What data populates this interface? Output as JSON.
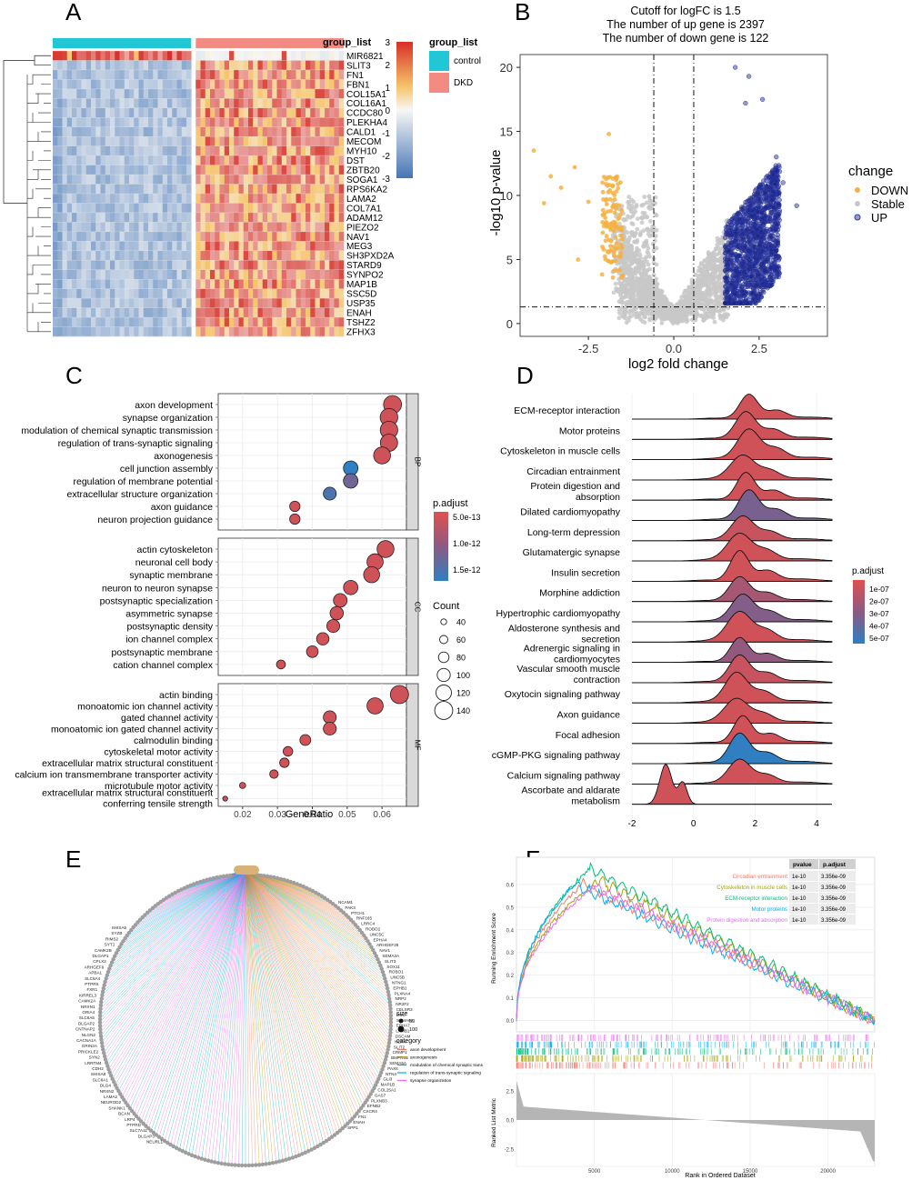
{
  "panel_letters": [
    "A",
    "B",
    "C",
    "D",
    "E",
    "F"
  ],
  "colors": {
    "heat_low": "#4575b4",
    "heat_mid": "#f7f7f7",
    "heat_high": "#d73027",
    "control": "#22c7d6",
    "dkd": "#f28b82",
    "down": "#f5b041",
    "stable": "#c8c8c8",
    "up": "#1a237e",
    "padj_high": "#e0504f",
    "padj_low": "#2f7fc1",
    "facet_strip": "#d9d9d9",
    "panel_bg": "#ffffff",
    "grid": "#ebebeb"
  },
  "chart_data": [
    {
      "panel": "A",
      "type": "heatmap",
      "genes": [
        "MIR6821",
        "SLIT3",
        "FN1",
        "FBN1",
        "COL15A1",
        "COL16A1",
        "CCDC80",
        "PLEKHA4",
        "CALD1",
        "MECOM",
        "MYH10",
        "DST",
        "ZBTB20",
        "SOGA1",
        "RPS6KA2",
        "LAMA2",
        "COL7A1",
        "ADAM12",
        "PIEZO2",
        "NAV1",
        "MEG3",
        "SH3PXD2A",
        "STARD9",
        "SYNPO2",
        "MAP1B",
        "SSC5D",
        "USP35",
        "ENAH",
        "TSHZ2",
        "ZFHX3"
      ],
      "n_control": 28,
      "n_dkd": 31,
      "annotation_title": "group_list",
      "legend_title": "group_list",
      "groups": [
        "control",
        "DKD"
      ],
      "scale_ticks": [
        3,
        2,
        1,
        0,
        -1,
        -2,
        -3
      ]
    },
    {
      "panel": "B",
      "type": "scatter",
      "title_lines": [
        "Cutoff for logFC is 1.5",
        "The number of up gene is 2397",
        "The number of down gene is 122"
      ],
      "xlabel": "log2 fold change",
      "ylabel": "-log10 p-value",
      "xlim": [
        -4.5,
        4.5
      ],
      "ylim": [
        -1,
        21
      ],
      "x_ticks": [
        -2.5,
        0.0,
        2.5
      ],
      "x_tick_labels": [
        "-2.5",
        "0.0",
        "2.5"
      ],
      "y_ticks": [
        0,
        5,
        10,
        15,
        20
      ],
      "vlines": [
        -0.585,
        0.585
      ],
      "hline": 1.3,
      "legend_title": "change",
      "legend": [
        "DOWN",
        "Stable",
        "UP"
      ],
      "n_up": 2397,
      "n_down": 122
    },
    {
      "panel": "C",
      "type": "scatter",
      "xlabel": "GeneRatio",
      "x_ticks": [
        0.02,
        0.03,
        0.04,
        0.05,
        0.06
      ],
      "xlim": [
        0.013,
        0.067
      ],
      "padj_legend_title": "p.adjust",
      "padj_ticks": [
        "5.0e-13",
        "1.0e-12",
        "1.5e-12"
      ],
      "count_legend_title": "Count",
      "count_ticks": [
        40,
        60,
        80,
        100,
        120,
        140
      ],
      "facets": [
        {
          "name": "BP",
          "terms": [
            {
              "term": "axon development",
              "ratio": 0.063,
              "count": 140,
              "padj": 0.1
            },
            {
              "term": "synapse organization",
              "ratio": 0.062,
              "count": 138,
              "padj": 0.1
            },
            {
              "term": "modulation of chemical synaptic transmission",
              "ratio": 0.062,
              "count": 136,
              "padj": 0.1
            },
            {
              "term": "regulation of trans-synaptic signaling",
              "ratio": 0.062,
              "count": 135,
              "padj": 0.1
            },
            {
              "term": "axonogenesis",
              "ratio": 0.06,
              "count": 131,
              "padj": 0.1
            },
            {
              "term": "cell junction assembly",
              "ratio": 0.051,
              "count": 112,
              "padj": 1.0
            },
            {
              "term": "regulation of membrane potential",
              "ratio": 0.051,
              "count": 112,
              "padj": 0.65
            },
            {
              "term": "extracellular structure organization",
              "ratio": 0.045,
              "count": 98,
              "padj": 0.85
            },
            {
              "term": "axon guidance",
              "ratio": 0.035,
              "count": 78,
              "padj": 0.1
            },
            {
              "term": "neuron projection guidance",
              "ratio": 0.035,
              "count": 78,
              "padj": 0.1
            }
          ]
        },
        {
          "name": "CC",
          "terms": [
            {
              "term": "actin cytoskeleton",
              "ratio": 0.061,
              "count": 132,
              "padj": 0.1
            },
            {
              "term": "neuronal cell body",
              "ratio": 0.058,
              "count": 126,
              "padj": 0.1
            },
            {
              "term": "synaptic membrane",
              "ratio": 0.057,
              "count": 124,
              "padj": 0.1
            },
            {
              "term": "neuron to neuron synapse",
              "ratio": 0.051,
              "count": 110,
              "padj": 0.1
            },
            {
              "term": "postsynaptic specialization",
              "ratio": 0.048,
              "count": 104,
              "padj": 0.1
            },
            {
              "term": "asymmetric synapse",
              "ratio": 0.047,
              "count": 101,
              "padj": 0.1
            },
            {
              "term": "postsynaptic density",
              "ratio": 0.046,
              "count": 99,
              "padj": 0.1
            },
            {
              "term": "ion channel complex",
              "ratio": 0.043,
              "count": 94,
              "padj": 0.1
            },
            {
              "term": "postsynaptic membrane",
              "ratio": 0.04,
              "count": 88,
              "padj": 0.1
            },
            {
              "term": "cation channel complex",
              "ratio": 0.031,
              "count": 66,
              "padj": 0.1
            }
          ]
        },
        {
          "name": "MF",
          "terms": [
            {
              "term": "actin binding",
              "ratio": 0.065,
              "count": 142,
              "padj": 0.1
            },
            {
              "term": "monoatomic ion channel activity",
              "ratio": 0.058,
              "count": 126,
              "padj": 0.1
            },
            {
              "term": "gated channel activity",
              "ratio": 0.045,
              "count": 99,
              "padj": 0.1
            },
            {
              "term": "monoatomic ion gated channel activity",
              "ratio": 0.045,
              "count": 98,
              "padj": 0.1
            },
            {
              "term": "calmodulin binding",
              "ratio": 0.038,
              "count": 83,
              "padj": 0.1
            },
            {
              "term": "cytoskeletal motor activity",
              "ratio": 0.033,
              "count": 72,
              "padj": 0.1
            },
            {
              "term": "extracellular matrix structural constituent",
              "ratio": 0.032,
              "count": 70,
              "padj": 0.1
            },
            {
              "term": "calcium ion transmembrane transporter activity",
              "ratio": 0.029,
              "count": 63,
              "padj": 0.1
            },
            {
              "term": "microtubule motor activity",
              "ratio": 0.02,
              "count": 44,
              "padj": 0.1
            },
            {
              "term": "extracellular matrix structural constituent conferring tensile strength",
              "ratio": 0.015,
              "count": 33,
              "padj": 0.1
            }
          ]
        }
      ]
    },
    {
      "panel": "D",
      "type": "area",
      "xlim": [
        -2,
        4.5
      ],
      "x_ticks": [
        -2,
        0,
        2,
        4
      ],
      "legend_title": "p.adjust",
      "legend_ticks": [
        "1e-07",
        "2e-07",
        "3e-07",
        "4e-07",
        "5e-07"
      ],
      "pathways": [
        {
          "name": "ECM-receptor interaction",
          "center": 1.8,
          "padj": 0.1
        },
        {
          "name": "Motor proteins",
          "center": 1.7,
          "padj": 0.1
        },
        {
          "name": "Cytoskeleton in muscle cells",
          "center": 1.8,
          "padj": 0.1
        },
        {
          "name": "Circadian entrainment",
          "center": 1.6,
          "padj": 0.1
        },
        {
          "name": "Protein digestion and absorption",
          "center": 1.7,
          "padj": 0.1
        },
        {
          "name": "Dilated cardiomyopathy",
          "center": 1.8,
          "padj": 0.6
        },
        {
          "name": "Long-term depression",
          "center": 1.6,
          "padj": 0.15
        },
        {
          "name": "Glutamatergic synapse",
          "center": 1.5,
          "padj": 0.1
        },
        {
          "name": "Insulin secretion",
          "center": 1.5,
          "padj": 0.1
        },
        {
          "name": "Morphine addiction",
          "center": 1.5,
          "padj": 0.35
        },
        {
          "name": "Hypertrophic cardiomyopathy",
          "center": 1.6,
          "padj": 0.55
        },
        {
          "name": "Aldosterone synthesis and secretion",
          "center": 1.5,
          "padj": 0.1
        },
        {
          "name": "Adrenergic signaling in cardiomyocytes",
          "center": 1.5,
          "padj": 0.45
        },
        {
          "name": "Vascular smooth muscle contraction",
          "center": 1.5,
          "padj": 0.15
        },
        {
          "name": "Oxytocin signaling pathway",
          "center": 1.4,
          "padj": 0.1
        },
        {
          "name": "Axon guidance",
          "center": 1.4,
          "padj": 0.1
        },
        {
          "name": "Focal adhesion",
          "center": 1.6,
          "padj": 0.1
        },
        {
          "name": "cGMP-PKG signaling pathway",
          "center": 1.5,
          "padj": 1.0
        },
        {
          "name": "Calcium signaling pathway",
          "center": 1.5,
          "padj": 0.1
        },
        {
          "name": "Ascorbate and aldarate metabolism",
          "center": -0.9,
          "padj": 0.1
        }
      ]
    },
    {
      "panel": "E",
      "type": "other",
      "legend_size_title": "size",
      "legend_sizes": [
        50,
        100
      ],
      "legend_category_title": "category",
      "categories": [
        "axon development",
        "axonogenesis",
        "modulation of chemical synaptic trans",
        "regulation of trans-synaptic signaling",
        "synapse organization"
      ],
      "category_colors": [
        "#f8766d",
        "#c49a00",
        "#00b8a9",
        "#00a9ff",
        "#f564e3"
      ],
      "gene_labels_left": [
        "SHISA5",
        "SYZB",
        "RIMS2",
        "SYT1",
        "CAMK2B",
        "DLGAP1",
        "CPLX2",
        "ARHGEF9",
        "APBA1",
        "SLC6A4",
        "PTPRS",
        "FXR1",
        "KIRREL3",
        "CAMK2A",
        "NRXN1",
        "GRIA4",
        "SLC6A5",
        "DLGAP2",
        "CNTNAP2",
        "NLGN2",
        "CACNA1A",
        "GRIN2A",
        "PRICKLE2",
        "SYN2",
        "LRRTM4",
        "CDH2",
        "SHISA8",
        "SLC8A1",
        "DLG4",
        "NRXN2",
        "LAMA2",
        "NEUROD2",
        "SHANK1",
        "BCAN",
        "LRP4",
        "PTPRD",
        "SLC7A11",
        "DLGAP3",
        "NEURL1"
      ],
      "gene_labels_right": [
        "NCAM1",
        "PAK3",
        "PTCH1",
        "RNF165",
        "LRRC4",
        "ROBO2",
        "UNC5C",
        "EPHA4",
        "ARHGEF28",
        "NAV1",
        "SEMA3A",
        "SLIT3",
        "SOX11",
        "ROBO1",
        "UNC5B",
        "NTNG1",
        "EPHB1",
        "PLXNA4",
        "NRP2",
        "NR2F2",
        "CELSR3",
        "DCC",
        "SEMA6A",
        "EPHA7",
        "LAMB1",
        "DSCAM",
        "NEXN",
        "SLIT2",
        "CRMP1",
        "BMPR1B",
        "SEMA5A",
        "PAX6",
        "NTN4",
        "GLI3",
        "MAP1B",
        "COL25A1",
        "GAS7",
        "PLXNB3",
        "EFNB2",
        "CXCR4",
        "FN1",
        "ENAH",
        "SPP1"
      ]
    },
    {
      "panel": "F",
      "type": "line",
      "ylabel_top": "Running Enrichment Score",
      "ylabel_bottom": "Ranked List Metric",
      "xlabel": "Rank in Ordered Dataset",
      "x_ticks": [
        5000,
        10000,
        15000,
        20000
      ],
      "es_ticks": [
        0.0,
        0.1,
        0.2,
        0.3,
        0.4,
        0.5,
        0.6
      ],
      "metric_ticks": [
        2.5,
        0.0,
        -2.5
      ],
      "n_genes": 23000,
      "table_headers": [
        "pvalue",
        "p.adjust"
      ],
      "series": [
        {
          "name": "Circadian entrainment",
          "color": "#f8766d",
          "pvalue": "1e-10",
          "padj": "3.356e-09",
          "peak": 0.6,
          "peak_at": 4200
        },
        {
          "name": "Cytoskeleton in muscle cells",
          "color": "#a3a500",
          "pvalue": "1e-10",
          "padj": "3.356e-09",
          "peak": 0.62,
          "peak_at": 5200
        },
        {
          "name": "ECM-receptor interaction",
          "color": "#00bf7d",
          "pvalue": "1e-10",
          "padj": "3.356e-09",
          "peak": 0.67,
          "peak_at": 4700
        },
        {
          "name": "Motor proteins",
          "color": "#00b0f6",
          "pvalue": "1e-10",
          "padj": "3.356e-09",
          "peak": 0.6,
          "peak_at": 3700
        },
        {
          "name": "Protein digestion and absorption",
          "color": "#e76bf3",
          "pvalue": "1e-10",
          "padj": "3.356e-09",
          "peak": 0.59,
          "peak_at": 5000
        }
      ]
    }
  ]
}
